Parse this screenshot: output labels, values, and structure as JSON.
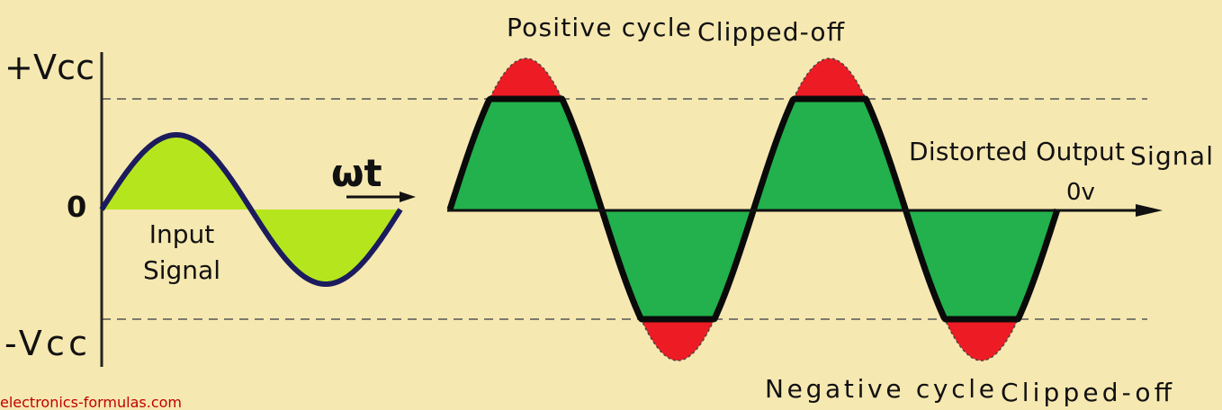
{
  "axis_labels": {
    "positive": "+Vcc",
    "zero": "0",
    "negative": "-Vcc",
    "omega_t": "ωt",
    "zero_v": "0v"
  },
  "input_signal": {
    "line1": "Input",
    "line2": "Signal"
  },
  "positive_clip": {
    "part1": "Positive cycle",
    "part2": "Clipped-off"
  },
  "negative_clip": {
    "part1": "Negative cycle",
    "part2": "Clipped-off"
  },
  "output_signal": {
    "part1": "Distorted Output",
    "part2": "Signal"
  },
  "watermark": "electronics-formulas.com"
}
